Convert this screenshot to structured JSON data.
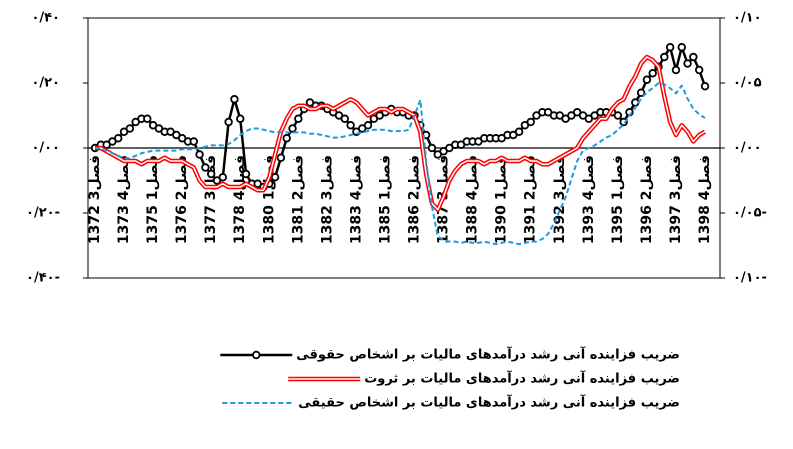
{
  "chart_data": {
    "type": "line",
    "categories": [
      "فصل3 1372",
      null,
      null,
      null,
      null,
      "فصل4 1373",
      null,
      null,
      null,
      null,
      "فصل1 1375",
      null,
      null,
      null,
      null,
      "فصل2 1376",
      null,
      null,
      null,
      null,
      "فصل3 1377",
      null,
      null,
      null,
      null,
      "فصل4 1378",
      null,
      null,
      null,
      null,
      "فصل1 1380",
      null,
      null,
      null,
      null,
      "فصل2 1381",
      null,
      null,
      null,
      null,
      "فصل3 1382",
      null,
      null,
      null,
      null,
      "فصل4 1383",
      null,
      null,
      null,
      null,
      "فصل1 1385",
      null,
      null,
      null,
      null,
      "فصل2 1386",
      null,
      null,
      null,
      null,
      "فصل3 1387",
      null,
      null,
      null,
      null,
      "فصل4 1388",
      null,
      null,
      null,
      null,
      "فصل1 1390",
      null,
      null,
      null,
      null,
      "فصل2 1391",
      null,
      null,
      null,
      null,
      "فصل3 1392",
      null,
      null,
      null,
      null,
      "فصل4 1393",
      null,
      null,
      null,
      null,
      "فصل1 1395",
      null,
      null,
      null,
      null,
      "فصل2 1396",
      null,
      null,
      null,
      null,
      "فصل3 1397",
      null,
      null,
      null,
      null,
      "فصل4 1398"
    ],
    "ylim": [
      -0.4,
      0.4
    ],
    "yticks": [
      {
        "value": 0.4,
        "label": "۰/۴۰"
      },
      {
        "value": 0.2,
        "label": "۰/۲۰"
      },
      {
        "value": 0,
        "label": "۰/۰۰"
      },
      {
        "value": -0.2,
        "label": "۰/۲۰-"
      },
      {
        "value": -0.4,
        "label": "۰/۴۰-"
      }
    ],
    "y2lim": [
      -0.1,
      0.1
    ],
    "y2ticks": [
      {
        "value": 0.1,
        "label": "۰/۱۰"
      },
      {
        "value": 0.05,
        "label": "۰/۰۵"
      },
      {
        "value": 0,
        "label": "۰/۰۰"
      },
      {
        "value": -0.05,
        "label": "۰/۰۵-"
      },
      {
        "value": -0.1,
        "label": "۰/۱۰-"
      }
    ],
    "grid": false,
    "legend": "bottom",
    "series": [
      {
        "name": "ضریب فزاینده آنی رشد درآمدهای مالیات بر اشخاص حقوقی",
        "color": "#000000",
        "marker": "circle",
        "line_style": "solid",
        "values": [
          0,
          0.01,
          0.01,
          0.02,
          0.03,
          0.05,
          0.06,
          0.08,
          0.09,
          0.09,
          0.07,
          0.06,
          0.05,
          0.05,
          0.04,
          0.03,
          0.02,
          0.02,
          -0.02,
          -0.06,
          -0.08,
          -0.1,
          -0.09,
          0.08,
          0.15,
          0.09,
          -0.08,
          -0.11,
          -0.11,
          -0.12,
          -0.11,
          -0.09,
          -0.03,
          0.03,
          0.06,
          0.09,
          0.12,
          0.14,
          0.13,
          0.13,
          0.12,
          0.11,
          0.1,
          0.09,
          0.07,
          0.05,
          0.06,
          0.07,
          0.09,
          0.1,
          0.11,
          0.12,
          0.11,
          0.11,
          0.1,
          0.1,
          0.07,
          0.04,
          0.0,
          -0.02,
          -0.01,
          0.0,
          0.01,
          0.01,
          0.02,
          0.02,
          0.02,
          0.03,
          0.03,
          0.03,
          0.03,
          0.04,
          0.04,
          0.05,
          0.07,
          0.08,
          0.1,
          0.11,
          0.11,
          0.1,
          0.1,
          0.09,
          0.1,
          0.11,
          0.1,
          0.09,
          0.1,
          0.11,
          0.11,
          0.11,
          0.1,
          0.08,
          0.11,
          0.14,
          0.17,
          0.21,
          0.23,
          0.25,
          0.28,
          0.31,
          0.24,
          0.31,
          0.26,
          0.28,
          0.24,
          0.19
        ]
      },
      {
        "name": "ضریب فزاینده آنی  رشد درآمدهای مالیات بر ثروت",
        "color": "#ff0000",
        "marker": "none",
        "line_style": "double",
        "values": [
          0,
          0,
          -0.01,
          -0.02,
          -0.03,
          -0.04,
          -0.04,
          -0.04,
          -0.05,
          -0.04,
          -0.04,
          -0.04,
          -0.03,
          -0.04,
          -0.04,
          -0.04,
          -0.05,
          -0.06,
          -0.1,
          -0.12,
          -0.12,
          -0.12,
          -0.11,
          -0.12,
          -0.12,
          -0.12,
          -0.11,
          -0.12,
          -0.13,
          -0.13,
          -0.09,
          -0.02,
          0.05,
          0.09,
          0.12,
          0.13,
          0.13,
          0.12,
          0.12,
          0.13,
          0.13,
          0.12,
          0.13,
          0.14,
          0.15,
          0.14,
          0.12,
          0.1,
          0.11,
          0.12,
          0.12,
          0.11,
          0.12,
          0.12,
          0.11,
          0.1,
          0.05,
          -0.08,
          -0.17,
          -0.19,
          -0.15,
          -0.1,
          -0.07,
          -0.05,
          -0.04,
          -0.04,
          -0.04,
          -0.05,
          -0.04,
          -0.04,
          -0.03,
          -0.04,
          -0.04,
          -0.04,
          -0.03,
          -0.04,
          -0.04,
          -0.05,
          -0.05,
          -0.04,
          -0.03,
          -0.02,
          -0.01,
          0.0,
          0.03,
          0.05,
          0.07,
          0.09,
          0.09,
          0.12,
          0.14,
          0.15,
          0.19,
          0.22,
          0.26,
          0.28,
          0.27,
          0.25,
          0.16,
          0.08,
          0.04,
          0.07,
          0.05,
          0.02,
          0.04,
          0.05
        ]
      },
      {
        "name": "ضریب فزاینده آنی  رشد درآمدهای مالیات بر اشخاص حقیقی",
        "color": "#1e9be0",
        "marker": "none",
        "line_style": "dashed",
        "axis": "y2",
        "values": [
          0,
          0,
          -0.002,
          -0.004,
          -0.006,
          -0.008,
          -0.008,
          -0.006,
          -0.004,
          -0.003,
          -0.002,
          -0.002,
          -0.002,
          -0.002,
          -0.002,
          -0.001,
          -0.001,
          -0.001,
          0,
          0.001,
          0.002,
          0.002,
          0.002,
          0.003,
          0.006,
          0.01,
          0.013,
          0.015,
          0.015,
          0.014,
          0.013,
          0.012,
          0.012,
          0.012,
          0.012,
          0.012,
          0.012,
          0.011,
          0.011,
          0.01,
          0.009,
          0.008,
          0.008,
          0.009,
          0.01,
          0.011,
          0.012,
          0.013,
          0.014,
          0.014,
          0.014,
          0.013,
          0.013,
          0.013,
          0.014,
          0.025,
          0.037,
          -0.01,
          -0.045,
          -0.068,
          -0.071,
          -0.072,
          -0.072,
          -0.073,
          -0.072,
          -0.073,
          -0.073,
          -0.072,
          -0.073,
          -0.074,
          -0.073,
          -0.072,
          -0.073,
          -0.074,
          -0.073,
          -0.072,
          -0.072,
          -0.07,
          -0.066,
          -0.058,
          -0.048,
          -0.038,
          -0.024,
          -0.01,
          -0.002,
          0.0,
          0.002,
          0.005,
          0.008,
          0.01,
          0.014,
          0.018,
          0.025,
          0.031,
          0.038,
          0.043,
          0.046,
          0.05,
          0.049,
          0.046,
          0.042,
          0.048,
          0.038,
          0.03,
          0.026,
          0.023
        ]
      }
    ]
  }
}
